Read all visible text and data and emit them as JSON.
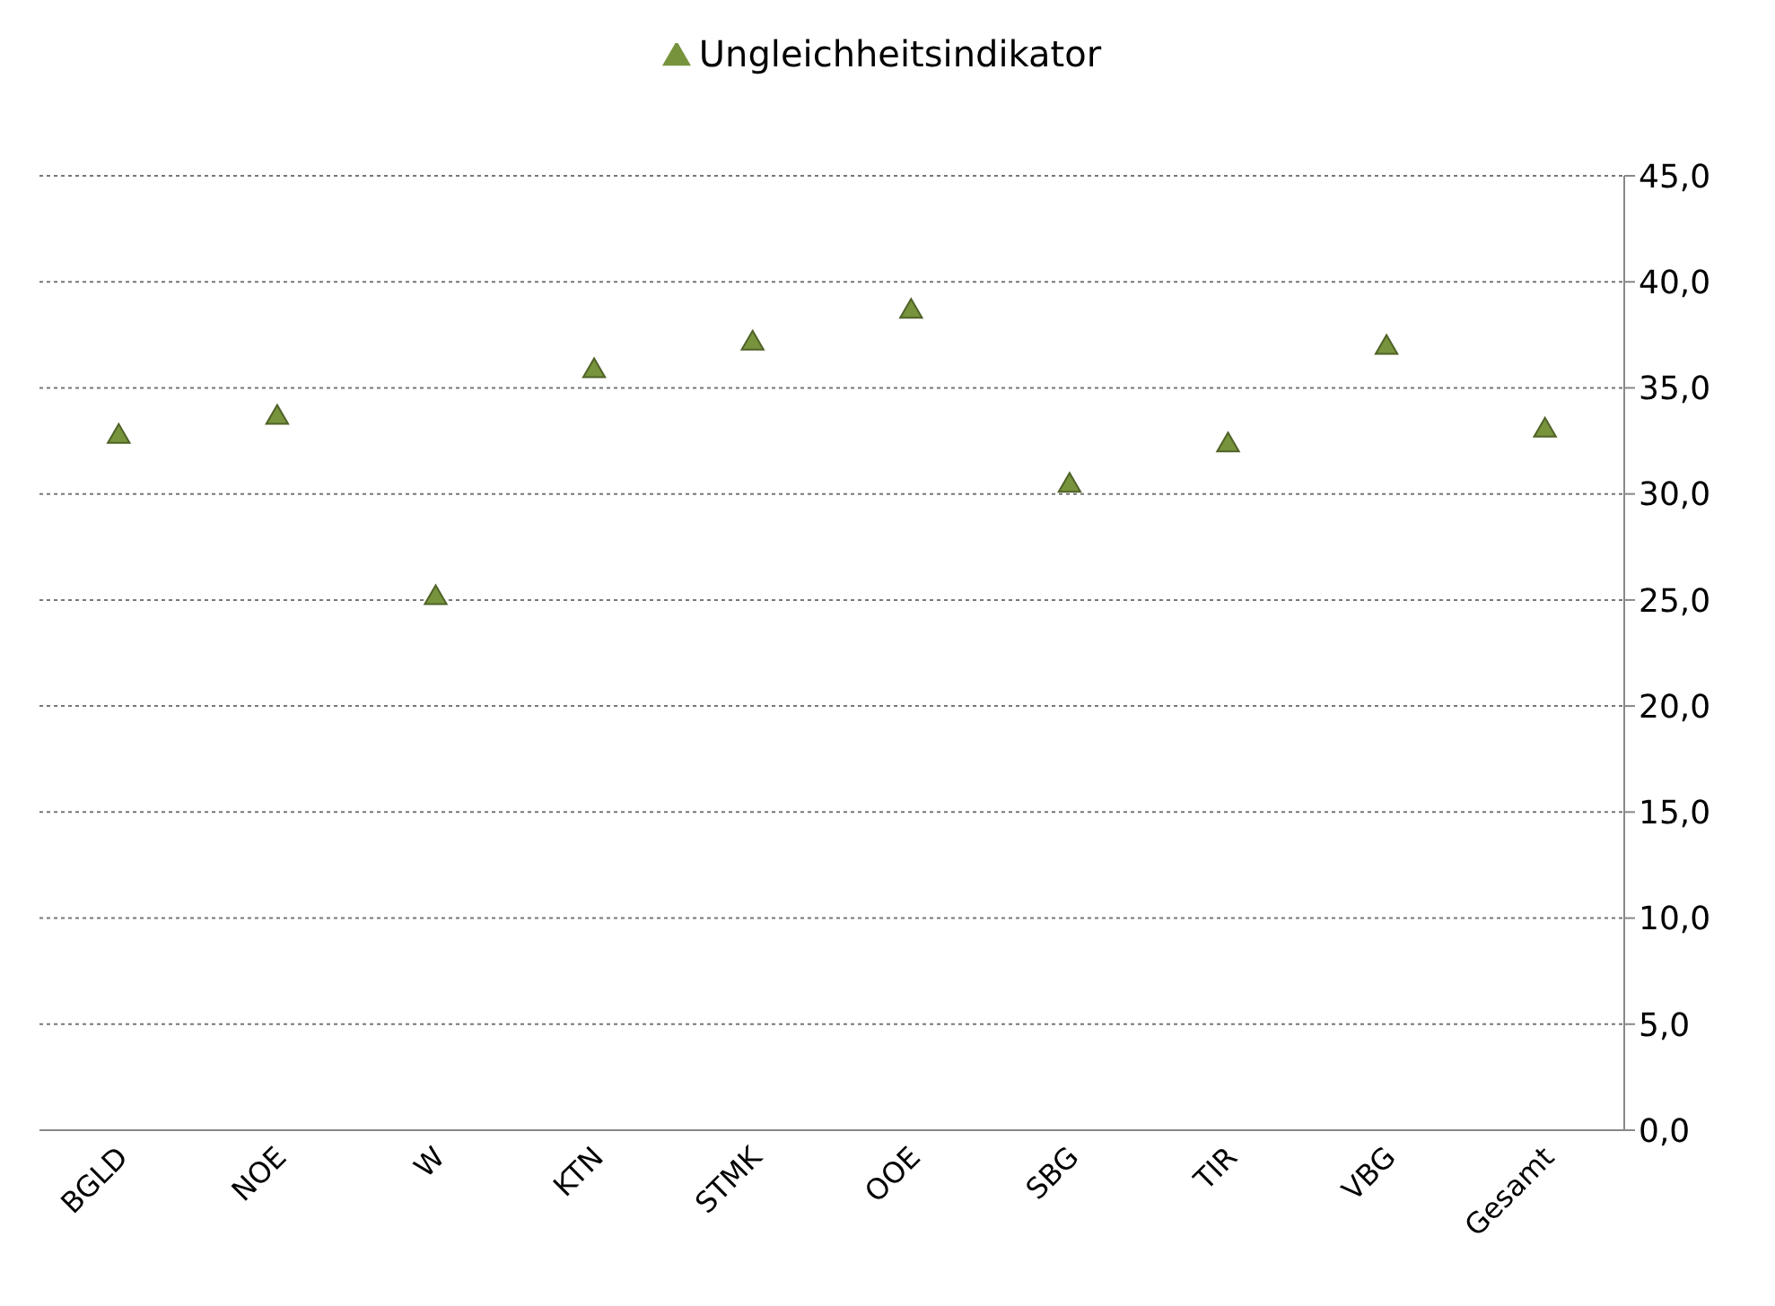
{
  "chart_data": {
    "type": "scatter",
    "categories": [
      "BGLD",
      "NOE",
      "W",
      "KTN",
      "STMK",
      "OOE",
      "SBG",
      "TIR",
      "VBG",
      "Gesamt"
    ],
    "series": [
      {
        "name": "Ungleichheitsindikator",
        "color": "#77933c",
        "values": [
          32.7,
          33.6,
          25.1,
          35.8,
          37.1,
          38.6,
          30.4,
          32.3,
          36.9,
          33.0
        ]
      }
    ],
    "ylim": [
      0,
      45
    ],
    "yticks": [
      {
        "value": 0,
        "label": "0,0"
      },
      {
        "value": 5,
        "label": "5,0"
      },
      {
        "value": 10,
        "label": "10,0"
      },
      {
        "value": 15,
        "label": "15,0"
      },
      {
        "value": 20,
        "label": "20,0"
      },
      {
        "value": 25,
        "label": "25,0"
      },
      {
        "value": 30,
        "label": "30,0"
      },
      {
        "value": 35,
        "label": "35,0"
      },
      {
        "value": 40,
        "label": "40,0"
      },
      {
        "value": 45,
        "label": "45,0"
      }
    ],
    "grid": "y",
    "legend": "top",
    "marker": "triangle"
  }
}
